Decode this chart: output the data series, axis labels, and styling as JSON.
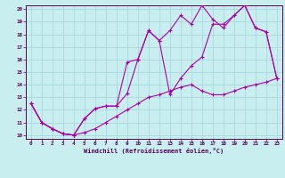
{
  "xlabel": "Windchill (Refroidissement éolien,°C)",
  "bg_color": "#c8eef0",
  "grid_color": "#a8d8dc",
  "line_color": "#aa00aa",
  "xlim": [
    0,
    23
  ],
  "ylim": [
    10,
    20
  ],
  "yticks": [
    10,
    11,
    12,
    13,
    14,
    15,
    16,
    17,
    18,
    19,
    20
  ],
  "xticks": [
    0,
    1,
    2,
    3,
    4,
    5,
    6,
    7,
    8,
    9,
    10,
    11,
    12,
    13,
    14,
    15,
    16,
    17,
    18,
    19,
    20,
    21,
    22,
    23
  ],
  "line1_x": [
    0,
    1,
    2,
    3,
    4,
    5,
    6,
    7,
    8,
    9,
    10,
    11,
    12,
    13,
    14,
    15,
    16,
    17,
    18,
    19,
    20,
    21,
    22,
    23
  ],
  "line1_y": [
    12.5,
    11.0,
    10.5,
    10.1,
    10.0,
    10.2,
    10.5,
    11.0,
    11.5,
    12.0,
    12.5,
    13.0,
    13.2,
    13.5,
    13.8,
    14.0,
    13.5,
    13.2,
    13.2,
    13.5,
    13.8,
    14.0,
    14.2,
    14.5
  ],
  "line2_x": [
    0,
    1,
    2,
    3,
    4,
    5,
    6,
    7,
    8,
    9,
    10,
    11,
    12,
    13,
    14,
    15,
    16,
    17,
    18,
    19,
    20,
    21,
    22,
    23
  ],
  "line2_y": [
    12.5,
    11.0,
    10.5,
    10.1,
    10.0,
    11.3,
    12.1,
    12.3,
    12.3,
    15.8,
    16.0,
    18.3,
    17.5,
    18.3,
    19.5,
    18.8,
    20.3,
    19.2,
    18.5,
    19.5,
    20.3,
    18.5,
    18.2,
    14.5
  ],
  "line3_x": [
    0,
    1,
    2,
    3,
    4,
    5,
    6,
    7,
    8,
    9,
    10,
    11,
    12,
    13,
    14,
    15,
    16,
    17,
    18,
    19,
    20,
    21,
    22,
    23
  ],
  "line3_y": [
    12.5,
    11.0,
    10.5,
    10.1,
    10.0,
    11.3,
    12.1,
    12.3,
    12.3,
    13.3,
    16.0,
    18.3,
    17.5,
    13.2,
    14.5,
    15.5,
    16.2,
    18.8,
    18.8,
    19.5,
    20.3,
    18.5,
    18.2,
    14.5
  ]
}
